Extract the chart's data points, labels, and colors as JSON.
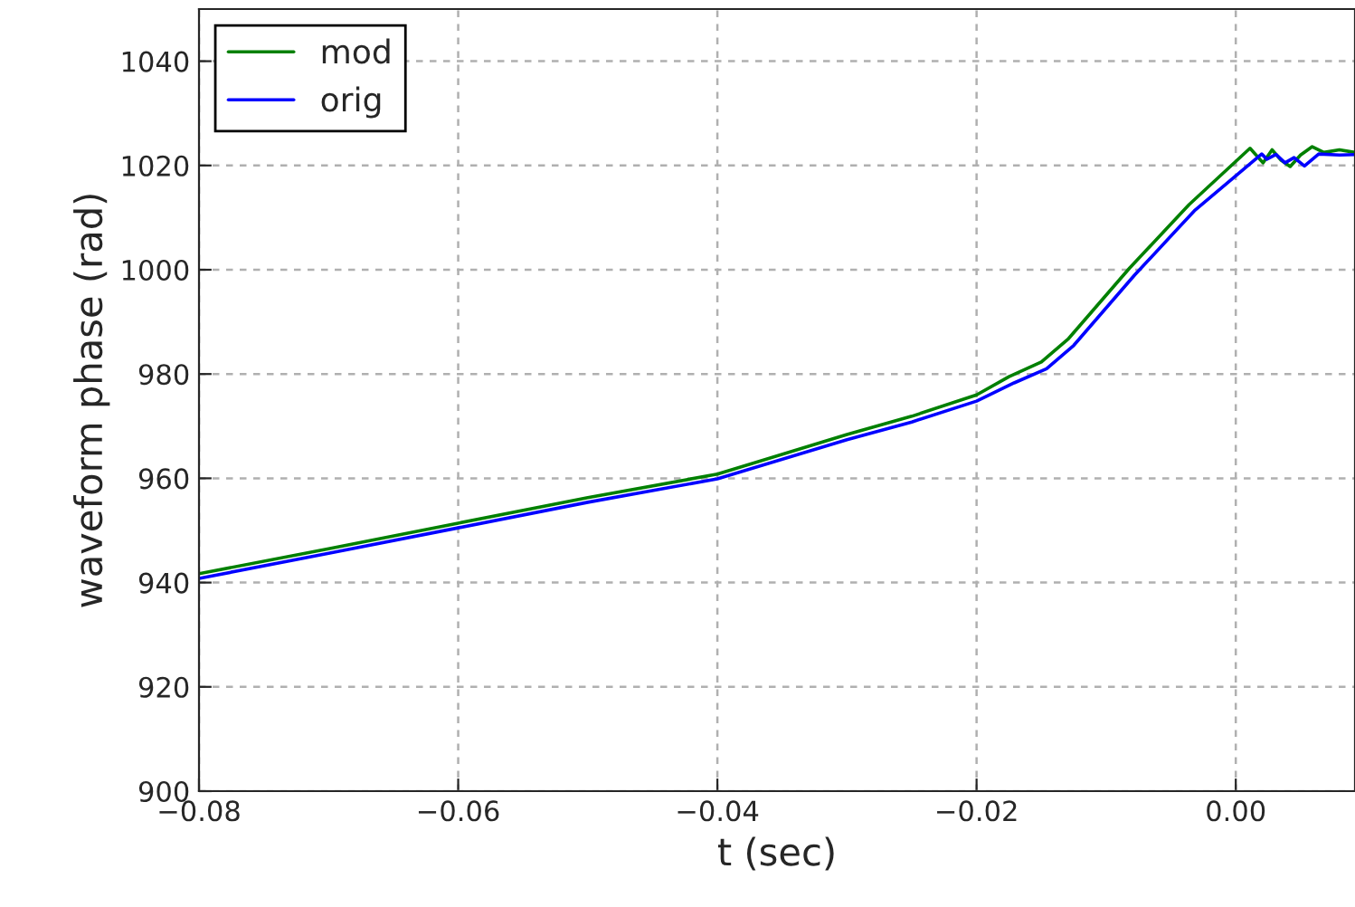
{
  "chart_data": {
    "type": "line",
    "xlabel": "t (sec)",
    "ylabel": "waveform phase (rad)",
    "xlim": [
      -0.08,
      0.0092
    ],
    "ylim": [
      900,
      1050
    ],
    "xticks": [
      {
        "value": -0.08,
        "label": "−0.08"
      },
      {
        "value": -0.06,
        "label": "−0.06"
      },
      {
        "value": -0.04,
        "label": "−0.04"
      },
      {
        "value": -0.02,
        "label": "−0.02"
      },
      {
        "value": 0,
        "label": "0.00"
      }
    ],
    "yticks": [
      900,
      920,
      940,
      960,
      980,
      1000,
      1020,
      1040
    ],
    "grid": true,
    "legend": "top left",
    "line_style": "solid",
    "marker": "none",
    "series": [
      {
        "name": "mod",
        "color": "#008000",
        "x": [
          -0.08,
          -0.07,
          -0.06,
          -0.05,
          -0.04,
          -0.03,
          -0.025,
          -0.02,
          -0.0175,
          -0.015,
          -0.0129,
          -0.0082,
          -0.0036,
          0.0011,
          0.0021,
          0.0028,
          0.0035,
          0.0042,
          0.005,
          0.0059,
          0.0068,
          0.008,
          0.0092
        ],
        "values": [
          941.7,
          946.5,
          951.4,
          956.3,
          960.8,
          968.4,
          971.9,
          976,
          979.5,
          982.3,
          986.8,
          1000.3,
          1012.5,
          1023.3,
          1020.5,
          1023,
          1021,
          1019.8,
          1022,
          1023.6,
          1022.5,
          1023,
          1022.5
        ]
      },
      {
        "name": "orig",
        "color": "#0000ff",
        "x": [
          -0.08,
          -0.07,
          -0.06,
          -0.05,
          -0.04,
          -0.03,
          -0.025,
          -0.02,
          -0.0171,
          -0.0146,
          -0.0125,
          -0.0078,
          -0.0032,
          0.002,
          0.0024,
          0.0031,
          0.0038,
          0.0045,
          0.0053,
          0.0064,
          0.008,
          0.0092
        ],
        "values": [
          940.8,
          945.6,
          950.5,
          955.4,
          959.9,
          967.4,
          970.8,
          974.8,
          978.3,
          981.0,
          985.5,
          999,
          1011.3,
          1022.2,
          1021.2,
          1022.1,
          1020.5,
          1021.5,
          1019.9,
          1022.2,
          1022,
          1022.1
        ]
      }
    ]
  }
}
